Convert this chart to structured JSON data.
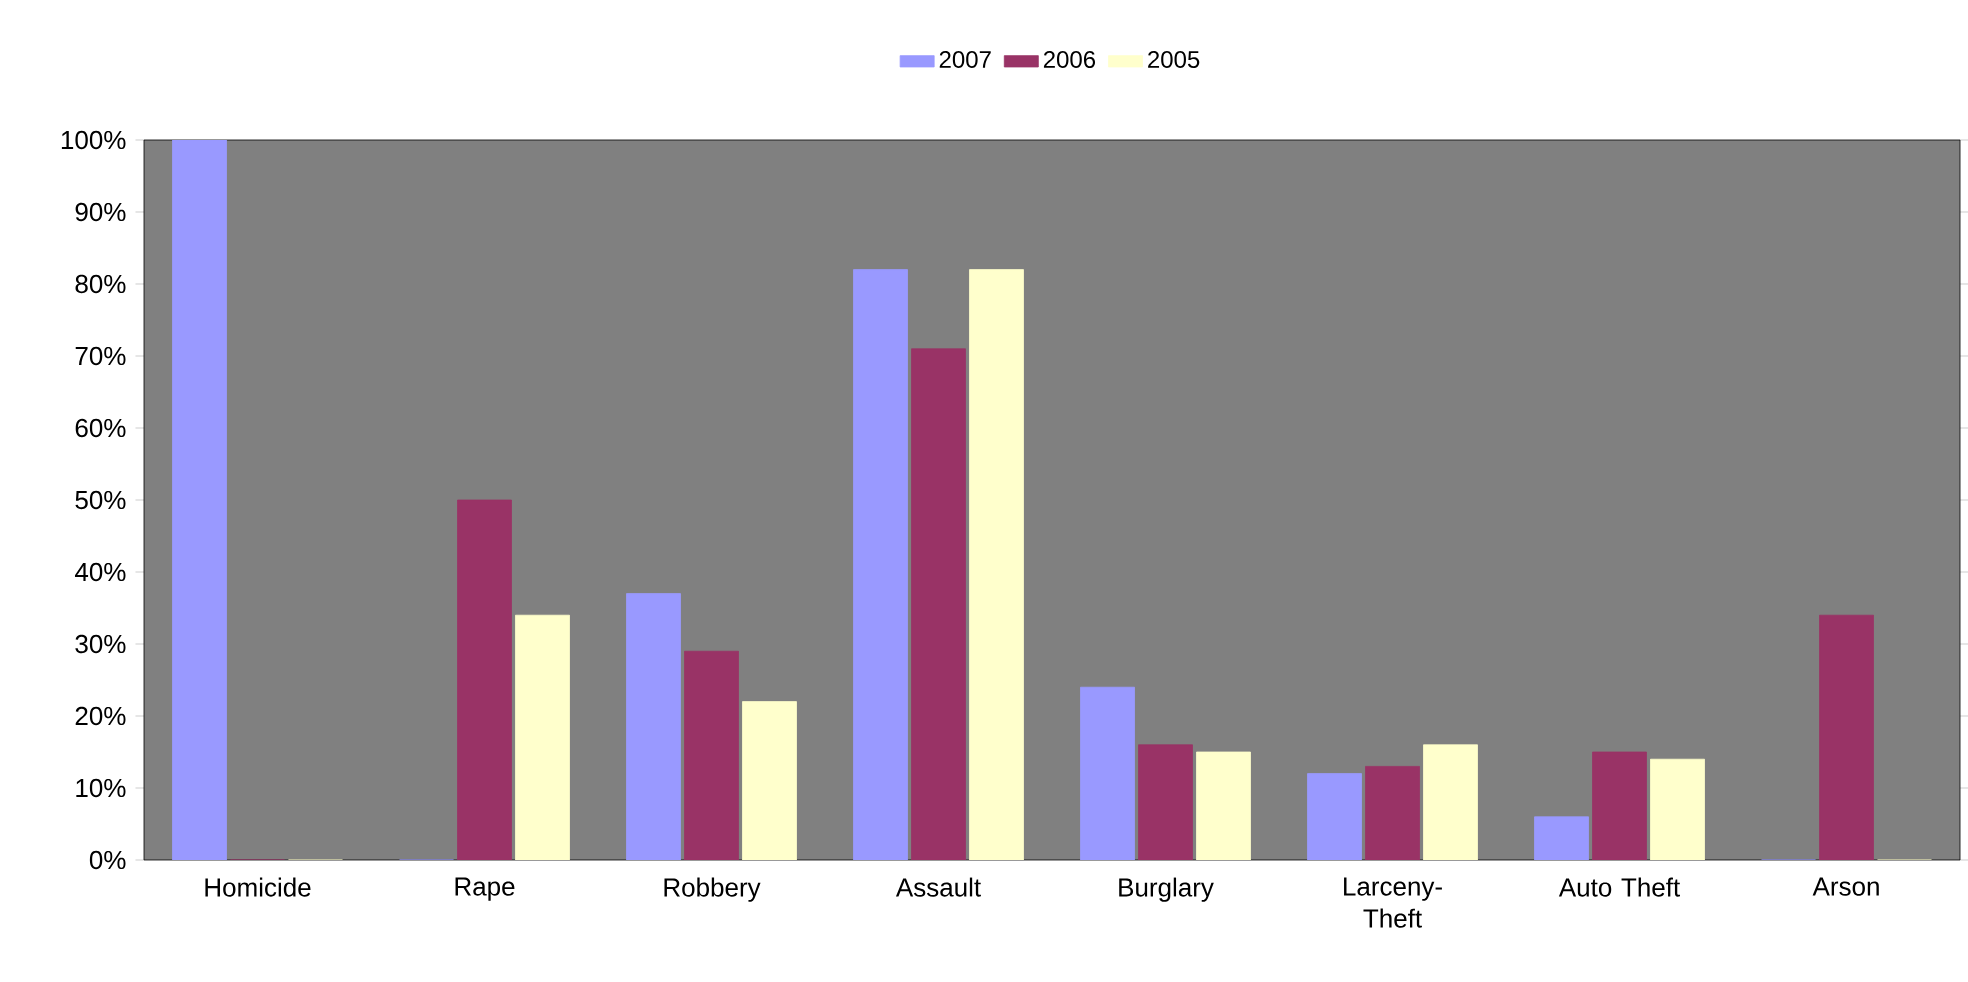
{
  "chart_data": {
    "type": "bar",
    "categories": [
      "Homicide",
      "Rape",
      "Robbery",
      "Assault",
      "Burglary",
      "Larceny-Theft",
      "Auto Theft",
      "Arson"
    ],
    "series": [
      {
        "name": "2007",
        "color": "#9999ff",
        "values": [
          100,
          0,
          37,
          82,
          24,
          12,
          6,
          0
        ]
      },
      {
        "name": "2006",
        "color": "#993366",
        "values": [
          0,
          50,
          29,
          71,
          16,
          13,
          15,
          34
        ]
      },
      {
        "name": "2005",
        "color": "#ffffcc",
        "values": [
          0,
          34,
          22,
          82,
          15,
          16,
          14,
          0
        ]
      }
    ],
    "ylim": [
      0,
      100
    ],
    "yticks": [
      {
        "value": 0,
        "label": "0%"
      },
      {
        "value": 10,
        "label": "10%"
      },
      {
        "value": 20,
        "label": "20%"
      },
      {
        "value": 30,
        "label": "30%"
      },
      {
        "value": 40,
        "label": "40%"
      },
      {
        "value": 50,
        "label": "50%"
      },
      {
        "value": 60,
        "label": "60%"
      },
      {
        "value": 70,
        "label": "70%"
      },
      {
        "value": 80,
        "label": "80%"
      },
      {
        "value": 90,
        "label": "90%"
      },
      {
        "value": 100,
        "label": "100%"
      }
    ],
    "grid": false,
    "legend": "top"
  }
}
